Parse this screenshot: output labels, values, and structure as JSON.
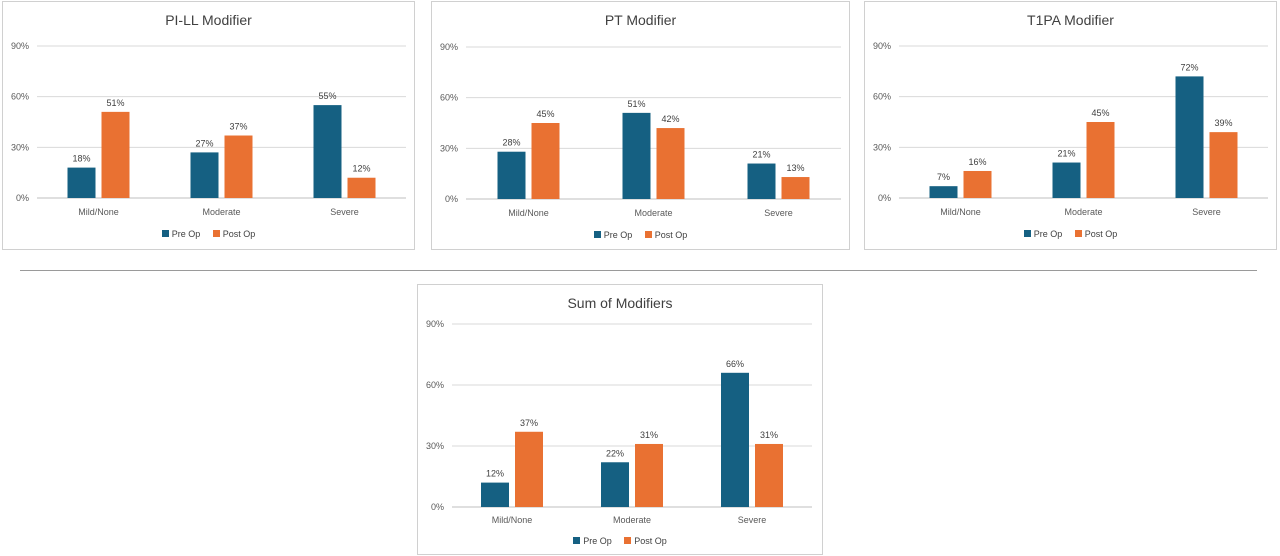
{
  "chart_data": [
    {
      "type": "bar",
      "title": "PI-LL Modifier",
      "categories": [
        "Mild/None",
        "Moderate",
        "Severe"
      ],
      "series": [
        {
          "name": "Pre Op",
          "values": [
            18,
            27,
            55
          ],
          "labels": [
            "18%",
            "27%",
            "55%"
          ],
          "color": "#156082"
        },
        {
          "name": "Post Op",
          "values": [
            51,
            37,
            12
          ],
          "labels": [
            "51%",
            "37%",
            "12%"
          ],
          "color": "#E97132"
        }
      ],
      "yticks": [
        "0%",
        "30%",
        "60%",
        "90%"
      ],
      "ylim": [
        0,
        90
      ],
      "grid": true,
      "legend": "bottom"
    },
    {
      "type": "bar",
      "title": "PT Modifier",
      "categories": [
        "Mild/None",
        "Moderate",
        "Severe"
      ],
      "series": [
        {
          "name": "Pre Op",
          "values": [
            28,
            51,
            21
          ],
          "labels": [
            "28%",
            "51%",
            "21%"
          ],
          "color": "#156082"
        },
        {
          "name": "Post Op",
          "values": [
            45,
            42,
            13
          ],
          "labels": [
            "45%",
            "42%",
            "13%"
          ],
          "color": "#E97132"
        }
      ],
      "yticks": [
        "0%",
        "30%",
        "60%",
        "90%"
      ],
      "ylim": [
        0,
        90
      ],
      "grid": true,
      "legend": "bottom"
    },
    {
      "type": "bar",
      "title": "T1PA Modifier",
      "categories": [
        "Mild/None",
        "Moderate",
        "Severe"
      ],
      "series": [
        {
          "name": "Pre Op",
          "values": [
            7,
            21,
            72
          ],
          "labels": [
            "7%",
            "21%",
            "72%"
          ],
          "color": "#156082"
        },
        {
          "name": "Post Op",
          "values": [
            16,
            45,
            39
          ],
          "labels": [
            "16%",
            "45%",
            "39%"
          ],
          "color": "#E97132"
        }
      ],
      "yticks": [
        "0%",
        "30%",
        "60%",
        "90%"
      ],
      "ylim": [
        0,
        90
      ],
      "grid": true,
      "legend": "bottom"
    },
    {
      "type": "bar",
      "title": "Sum of Modifiers",
      "categories": [
        "Mild/None",
        "Moderate",
        "Severe"
      ],
      "series": [
        {
          "name": "Pre Op",
          "values": [
            12,
            22,
            66
          ],
          "labels": [
            "12%",
            "22%",
            "66%"
          ],
          "color": "#156082"
        },
        {
          "name": "Post Op",
          "values": [
            37,
            31,
            31
          ],
          "labels": [
            "37%",
            "31%",
            "31%"
          ],
          "color": "#E97132"
        }
      ],
      "yticks": [
        "0%",
        "30%",
        "60%",
        "90%"
      ],
      "ylim": [
        0,
        90
      ],
      "grid": true,
      "legend": "bottom"
    }
  ]
}
